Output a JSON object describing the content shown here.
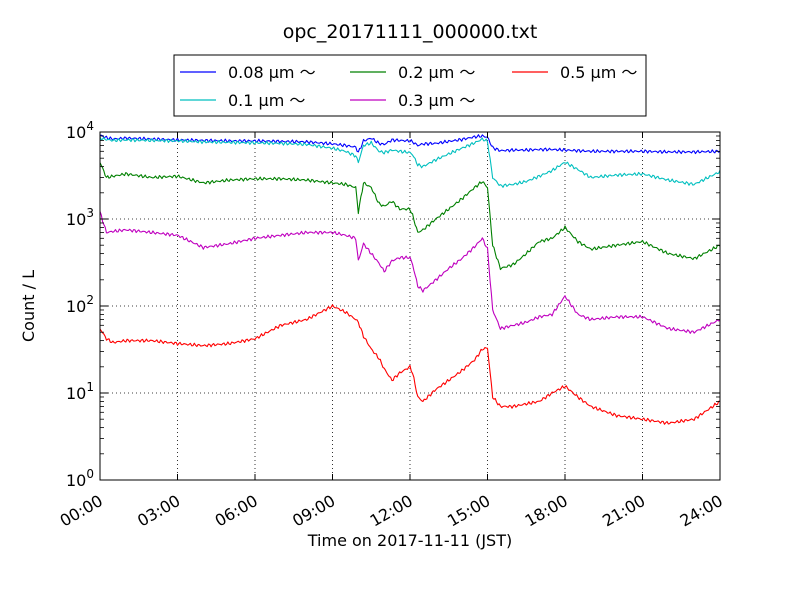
{
  "chart_data": {
    "type": "line",
    "title": "opc_20171111_000000.txt",
    "xlabel": "Time on 2017-11-11 (JST)",
    "ylabel": "Count / L",
    "yscale": "log",
    "ylim": [
      1,
      10000
    ],
    "xlim_hours": [
      0,
      24
    ],
    "x_ticks": [
      "00:00",
      "03:00",
      "06:00",
      "09:00",
      "12:00",
      "15:00",
      "18:00",
      "21:00",
      "24:00"
    ],
    "y_ticks": [
      {
        "base": "10",
        "exp": "0"
      },
      {
        "base": "10",
        "exp": "1"
      },
      {
        "base": "10",
        "exp": "2"
      },
      {
        "base": "10",
        "exp": "3"
      },
      {
        "base": "10",
        "exp": "4"
      }
    ],
    "grid": true,
    "legend_placement": "top-center",
    "x_hours": [
      0,
      0.25,
      0.5,
      1,
      2,
      3,
      4,
      5,
      6,
      7,
      8,
      9,
      9.5,
      9.9,
      10,
      10.2,
      10.5,
      10.8,
      11,
      11.3,
      11.6,
      12,
      12.1,
      12.3,
      12.5,
      13,
      13.5,
      14,
      14.5,
      14.8,
      15,
      15.2,
      15.5,
      16,
      16.5,
      17,
      17.5,
      18,
      18.5,
      19,
      20,
      21,
      22,
      23,
      24
    ],
    "series": [
      {
        "name": "0.08 μm ～",
        "color": "#0000ff",
        "values": [
          9200,
          8600,
          8300,
          8500,
          8300,
          8100,
          8000,
          7900,
          7900,
          7800,
          7700,
          7300,
          7000,
          6700,
          5800,
          7900,
          8500,
          7400,
          7200,
          8100,
          8000,
          7900,
          7700,
          7000,
          7300,
          7400,
          7800,
          8200,
          8800,
          9000,
          8700,
          6600,
          6100,
          6200,
          6200,
          6300,
          6300,
          6200,
          6100,
          6000,
          6000,
          6000,
          5900,
          5900,
          6000
        ]
      },
      {
        "name": "0.1 μm ～",
        "color": "#00bfbf",
        "values": [
          8500,
          8200,
          8000,
          8100,
          8000,
          7900,
          7700,
          7600,
          7500,
          7400,
          7200,
          6500,
          6000,
          5300,
          4500,
          7000,
          7500,
          6000,
          5800,
          6200,
          6000,
          5800,
          5500,
          4200,
          4000,
          4800,
          5600,
          6500,
          7500,
          8300,
          7800,
          3000,
          2400,
          2500,
          2700,
          3100,
          3600,
          4500,
          3700,
          3000,
          3200,
          3300,
          2800,
          2500,
          3500
        ]
      },
      {
        "name": "0.2 μm ～",
        "color": "#008000",
        "values": [
          4500,
          3000,
          3100,
          3300,
          3000,
          3100,
          2600,
          2800,
          2900,
          2900,
          2800,
          2600,
          2500,
          2300,
          1200,
          2600,
          2300,
          1500,
          1400,
          1600,
          1300,
          1300,
          1100,
          700,
          750,
          1000,
          1300,
          1700,
          2300,
          2700,
          2300,
          500,
          270,
          300,
          400,
          550,
          600,
          800,
          550,
          450,
          500,
          550,
          400,
          350,
          500
        ]
      },
      {
        "name": "0.3 μm ～",
        "color": "#bf00bf",
        "values": [
          1200,
          700,
          720,
          750,
          700,
          650,
          470,
          520,
          600,
          650,
          700,
          700,
          650,
          600,
          330,
          520,
          400,
          310,
          250,
          330,
          360,
          360,
          300,
          170,
          150,
          200,
          270,
          350,
          480,
          600,
          450,
          90,
          55,
          60,
          65,
          75,
          80,
          130,
          80,
          70,
          75,
          75,
          55,
          50,
          70
        ]
      },
      {
        "name": "0.5 μm ～",
        "color": "#ff0000",
        "values": [
          55,
          42,
          38,
          40,
          40,
          37,
          35,
          37,
          42,
          60,
          70,
          100,
          85,
          70,
          65,
          45,
          32,
          25,
          19,
          14,
          17,
          20,
          17,
          9,
          8,
          11,
          14,
          18,
          24,
          32,
          33,
          9,
          7,
          7,
          7.5,
          8,
          10,
          12,
          9,
          7,
          5.5,
          5,
          4.5,
          5,
          8
        ]
      }
    ]
  }
}
